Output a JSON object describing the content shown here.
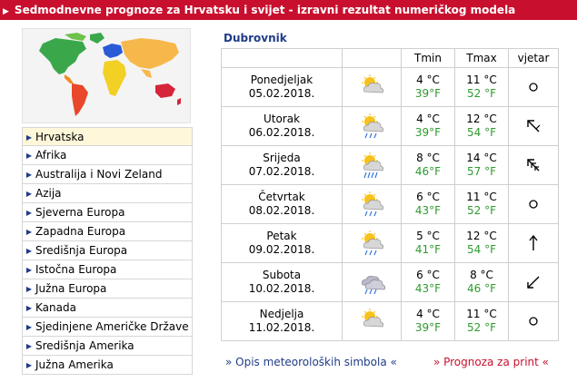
{
  "header": {
    "title": "Sedmodnevne prognoze za Hrvatsku i svijet - izravni rezultat numeričkog modela"
  },
  "sidebar": {
    "items": [
      {
        "label": "Hrvatska",
        "active": true
      },
      {
        "label": "Afrika"
      },
      {
        "label": "Australija i Novi Zeland"
      },
      {
        "label": "Azija"
      },
      {
        "label": "Sjeverna Europa"
      },
      {
        "label": "Zapadna Europa"
      },
      {
        "label": "Središnja Europa"
      },
      {
        "label": "Istočna Europa"
      },
      {
        "label": "Južna Europa"
      },
      {
        "label": "Kanada"
      },
      {
        "label": "Sjedinjene Američke Države"
      },
      {
        "label": "Središnja Amerika"
      },
      {
        "label": "Južna Amerika"
      }
    ]
  },
  "forecast": {
    "city": "Dubrovnik",
    "columns": {
      "tmin": "Tmin",
      "tmax": "Tmax",
      "wind": "vjetar"
    },
    "days": [
      {
        "day": "Ponedjeljak",
        "date": "05.02.2018.",
        "icon": "sun-cloud-icon",
        "tmin_c": "4 °C",
        "tmin_f": "39°F",
        "tmax_c": "11 °C",
        "tmax_f": "52 °F",
        "wind": "calm"
      },
      {
        "day": "Utorak",
        "date": "06.02.2018.",
        "icon": "sun-cloud-rain-icon",
        "tmin_c": "4 °C",
        "tmin_f": "39°F",
        "tmax_c": "12 °C",
        "tmax_f": "54 °F",
        "wind": "nw"
      },
      {
        "day": "Srijeda",
        "date": "07.02.2018.",
        "icon": "sun-cloud-heavy-rain-icon",
        "tmin_c": "8 °C",
        "tmin_f": "46°F",
        "tmax_c": "14 °C",
        "tmax_f": "57 °F",
        "wind": "nw-strong"
      },
      {
        "day": "Četvrtak",
        "date": "08.02.2018.",
        "icon": "sun-cloud-rain-icon",
        "tmin_c": "6 °C",
        "tmin_f": "43°F",
        "tmax_c": "11 °C",
        "tmax_f": "52 °F",
        "wind": "calm"
      },
      {
        "day": "Petak",
        "date": "09.02.2018.",
        "icon": "sun-cloud-rain-icon",
        "tmin_c": "5 °C",
        "tmin_f": "41°F",
        "tmax_c": "12 °C",
        "tmax_f": "54 °F",
        "wind": "n"
      },
      {
        "day": "Subota",
        "date": "10.02.2018.",
        "icon": "cloud-rain-icon",
        "tmin_c": "6 °C",
        "tmin_f": "43°F",
        "tmax_c": "8 °C",
        "tmax_f": "46 °F",
        "wind": "sw"
      },
      {
        "day": "Nedjelja",
        "date": "11.02.2018.",
        "icon": "sun-cloud-icon",
        "tmin_c": "4 °C",
        "tmin_f": "39°F",
        "tmax_c": "11 °C",
        "tmax_f": "52 °F",
        "wind": "calm"
      }
    ]
  },
  "links": {
    "symbols": "» Opis meteoroloških simbola «",
    "print": "» Prognoza za print «"
  },
  "colors": {
    "header_bg": "#c8102e",
    "link_blue": "#1f3c88",
    "fahrenheit_green": "#2e9a2e",
    "active_bg": "#fff7d9"
  }
}
